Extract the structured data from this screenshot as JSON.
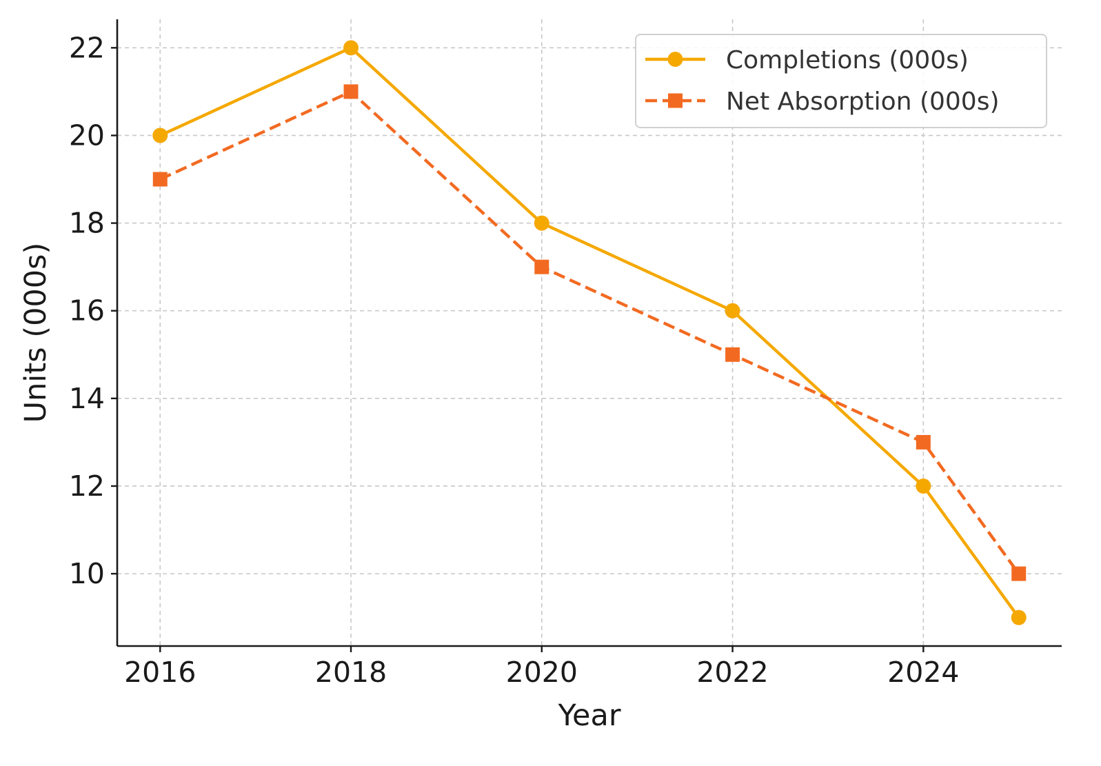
{
  "chart_data": {
    "type": "line",
    "title": "",
    "xlabel": "Year",
    "ylabel": "Units (000s)",
    "x": [
      2016,
      2018,
      2020,
      2022,
      2024,
      2025
    ],
    "xticks": [
      2016,
      2018,
      2020,
      2022,
      2024
    ],
    "yticks": [
      10,
      12,
      14,
      16,
      18,
      20,
      22
    ],
    "xlim": [
      2015.55,
      2025.45
    ],
    "ylim": [
      8.35,
      22.65
    ],
    "grid": true,
    "legend_position": "top-right",
    "series": [
      {
        "name": "Completions (000s)",
        "values": [
          20,
          22,
          18,
          16,
          12,
          9
        ],
        "color": "#F5A800",
        "line_style": "solid",
        "marker": "circle"
      },
      {
        "name": "Net Absorption (000s)",
        "values": [
          19,
          21,
          17,
          15,
          13,
          10
        ],
        "color": "#F26A21",
        "line_style": "dashed",
        "marker": "square"
      }
    ]
  }
}
